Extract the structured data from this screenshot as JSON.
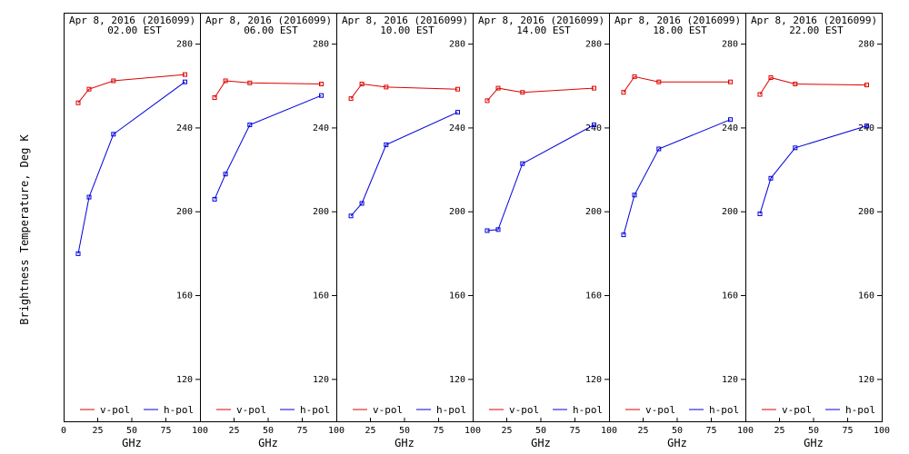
{
  "chart_data": {
    "type": "line",
    "ylabel": "Brightness Temperature, Deg K",
    "xlabel": "GHz",
    "ylim": [
      100,
      295
    ],
    "xlim": [
      0,
      100
    ],
    "yticks": [
      120,
      160,
      200,
      240,
      280
    ],
    "xticks": [
      0,
      25,
      50,
      75,
      100
    ],
    "grid": false,
    "legend": {
      "placement": "bottom",
      "entries": [
        {
          "name": "v-pol",
          "color": "#dd0000"
        },
        {
          "name": "h-pol",
          "color": "#0000dd"
        }
      ]
    },
    "panels": [
      {
        "title": "Apr  8, 2016 (2016099)",
        "subtitle": "02.00 EST",
        "x": [
          10.7,
          18.7,
          36.5,
          89
        ],
        "series": [
          {
            "name": "v-pol",
            "color": "#dd0000",
            "values": [
              252,
              258.5,
              262.5,
              265.5
            ]
          },
          {
            "name": "h-pol",
            "color": "#0000dd",
            "values": [
              180,
              207,
              237,
              262
            ]
          }
        ]
      },
      {
        "title": "Apr  8, 2016 (2016099)",
        "subtitle": "06.00 EST",
        "x": [
          10.7,
          18.7,
          36.5,
          89
        ],
        "series": [
          {
            "name": "v-pol",
            "color": "#dd0000",
            "values": [
              254.5,
              262.5,
              261.5,
              261
            ]
          },
          {
            "name": "h-pol",
            "color": "#0000dd",
            "values": [
              206,
              218,
              241.5,
              255.5
            ]
          }
        ]
      },
      {
        "title": "Apr  8, 2016 (2016099)",
        "subtitle": "10.00 EST",
        "x": [
          10.7,
          18.7,
          36.5,
          89
        ],
        "series": [
          {
            "name": "v-pol",
            "color": "#dd0000",
            "values": [
              254,
              261,
              259.5,
              258.5
            ]
          },
          {
            "name": "h-pol",
            "color": "#0000dd",
            "values": [
              198,
              204,
              232,
              247.5
            ]
          }
        ]
      },
      {
        "title": "Apr  8, 2016 (2016099)",
        "subtitle": "14.00 EST",
        "x": [
          10.7,
          18.7,
          36.5,
          89
        ],
        "series": [
          {
            "name": "v-pol",
            "color": "#dd0000",
            "values": [
              253,
              259,
              257,
              259
            ]
          },
          {
            "name": "h-pol",
            "color": "#0000dd",
            "values": [
              191,
              191.5,
              223,
              241.5
            ]
          }
        ]
      },
      {
        "title": "Apr  8, 2016 (2016099)",
        "subtitle": "18.00 EST",
        "x": [
          10.7,
          18.7,
          36.5,
          89
        ],
        "series": [
          {
            "name": "v-pol",
            "color": "#dd0000",
            "values": [
              257,
              264.5,
              262,
              262
            ]
          },
          {
            "name": "h-pol",
            "color": "#0000dd",
            "values": [
              189,
              208,
              230,
              244
            ]
          }
        ]
      },
      {
        "title": "Apr  8, 2016 (2016099)",
        "subtitle": "22.00 EST",
        "x": [
          10.7,
          18.7,
          36.5,
          89
        ],
        "series": [
          {
            "name": "v-pol",
            "color": "#dd0000",
            "values": [
              256,
              264,
              261,
              260.5
            ]
          },
          {
            "name": "h-pol",
            "color": "#0000dd",
            "values": [
              199,
              216,
              230.5,
              241
            ]
          }
        ]
      }
    ]
  }
}
